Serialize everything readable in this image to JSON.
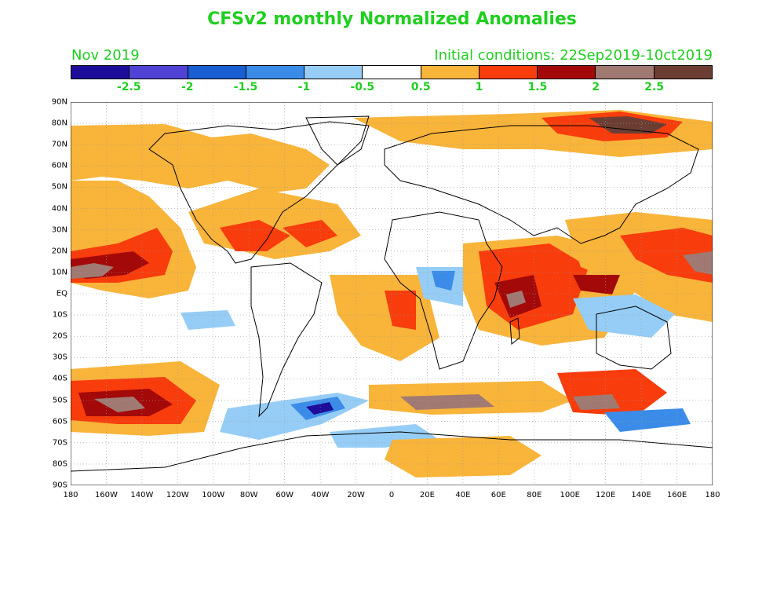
{
  "title": "CFSv2 monthly Normalized Anomalies",
  "month": "Nov 2019",
  "init": "Initial conditions: 22Sep2019-10ct2019",
  "colorbar": {
    "colors": [
      "#1e0d9a",
      "#5042d4",
      "#1a5fd1",
      "#3b8ce8",
      "#96cdf6",
      "#ffffff",
      "#f9b43a",
      "#f83c0c",
      "#a30909",
      "#a07a72",
      "#6c3e33"
    ],
    "labels": [
      "-2.5",
      "-2",
      "-1.5",
      "-1",
      "-0.5",
      "0.5",
      "1",
      "1.5",
      "2",
      "2.5"
    ]
  },
  "lat_labels": [
    "90N",
    "80N",
    "70N",
    "60N",
    "50N",
    "40N",
    "30N",
    "20N",
    "10N",
    "EQ",
    "10S",
    "20S",
    "30S",
    "40S",
    "50S",
    "60S",
    "70S",
    "80S",
    "90S"
  ],
  "lon_labels": [
    "180",
    "160W",
    "140W",
    "120W",
    "100W",
    "80W",
    "60W",
    "40W",
    "20W",
    "0",
    "20E",
    "40E",
    "60E",
    "80E",
    "100E",
    "120E",
    "140E",
    "160E",
    "180"
  ]
}
